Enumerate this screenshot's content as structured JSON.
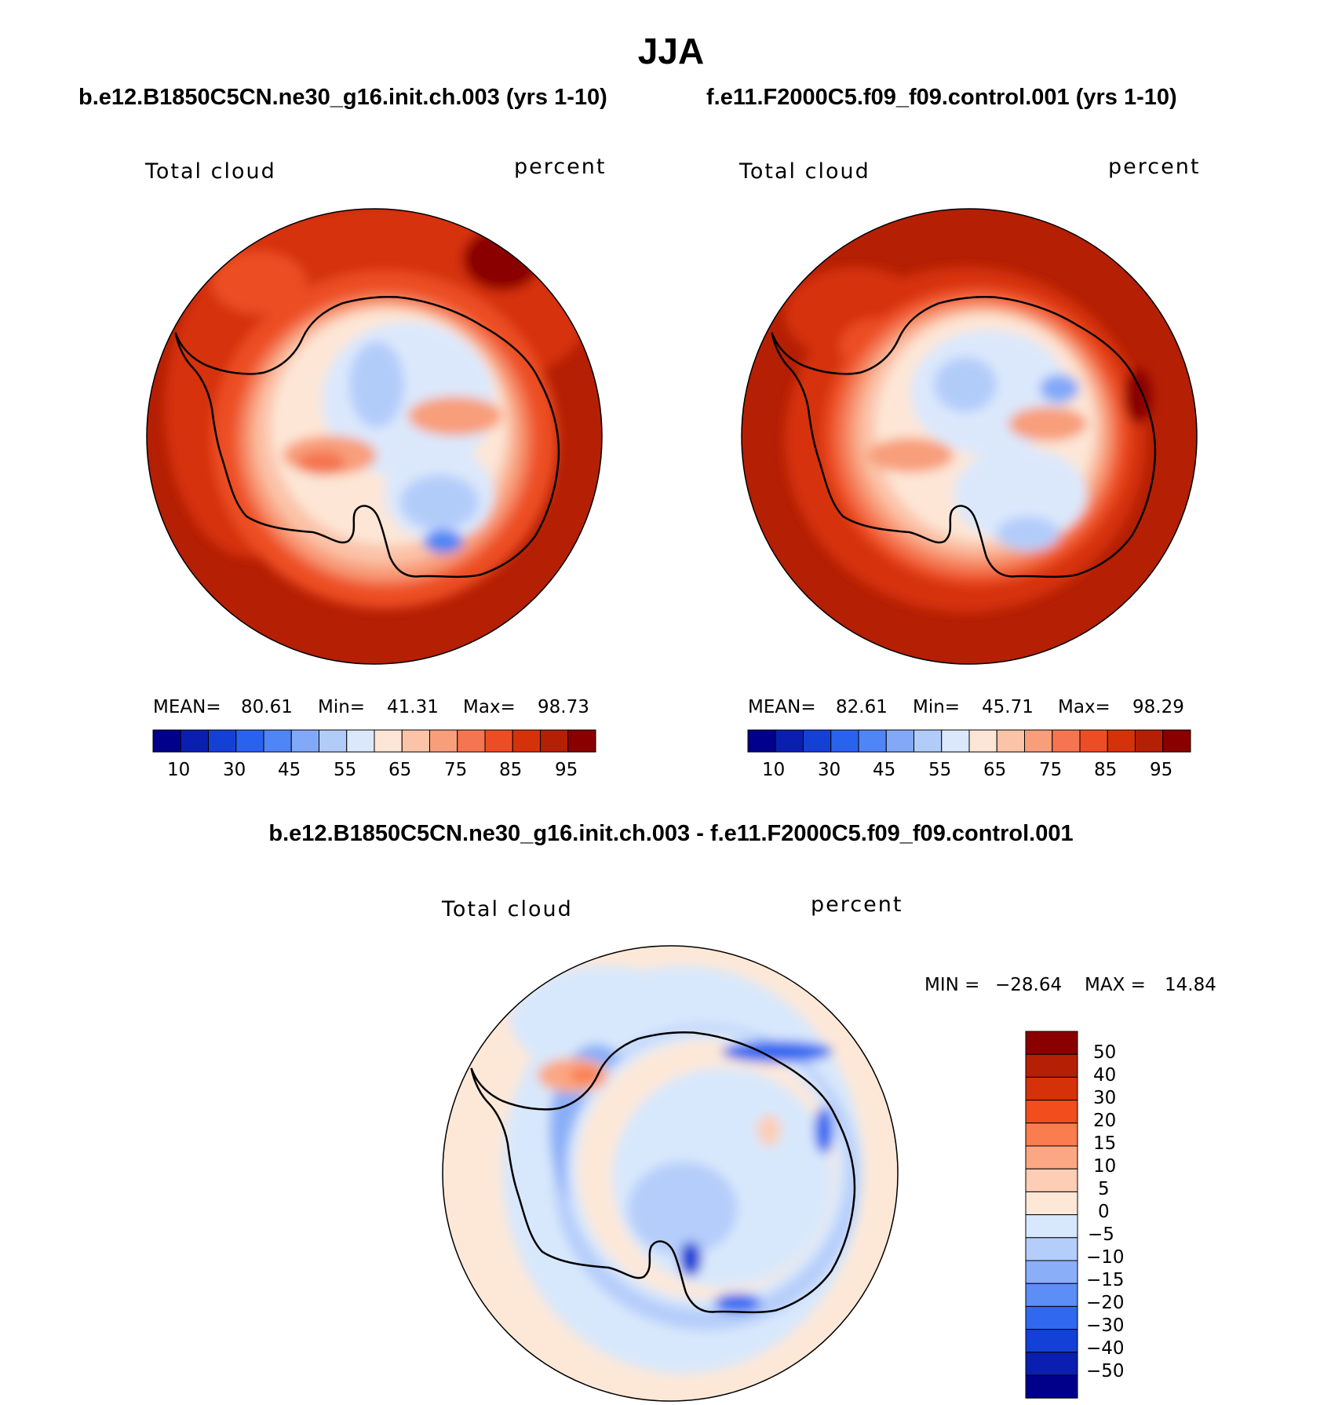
{
  "season": "JJA",
  "top_left": {
    "case_title": "b.e12.B1850C5CN.ne30_g16.init.ch.003 (yrs 1-10)",
    "variable": "Total cloud",
    "units": "percent",
    "stats": {
      "mean_label": "MEAN=",
      "mean": "80.61",
      "min_label": "Min=",
      "min": "41.31",
      "max_label": "Max=",
      "max": "98.73"
    }
  },
  "top_right": {
    "case_title": "f.e11.F2000C5.f09_f09.control.001 (yrs 1-10)",
    "variable": "Total cloud",
    "units": "percent",
    "stats": {
      "mean_label": "MEAN=",
      "mean": "82.61",
      "min_label": "Min=",
      "min": "45.71",
      "max_label": "Max=",
      "max": "98.29"
    }
  },
  "difference": {
    "title": "b.e12.B1850C5CN.ne30_g16.init.ch.003 - f.e11.F2000C5.f09_f09.control.001",
    "variable": "Total cloud",
    "units": "percent",
    "min_label": "MIN =",
    "min": "−28.64",
    "max_label": "MAX =",
    "max": "14.84"
  },
  "colorbar_field": {
    "labels": [
      "10",
      "30",
      "45",
      "55",
      "65",
      "75",
      "85",
      "95"
    ],
    "colors": [
      "#00008b",
      "#0a1fb0",
      "#1540d6",
      "#2a62f0",
      "#4f85f5",
      "#82a9f8",
      "#b2ccfa",
      "#dbe8fc",
      "#fde6d6",
      "#fbc3a8",
      "#f89e7a",
      "#f47550",
      "#ec4d24",
      "#d6320a",
      "#b51f04",
      "#8a0000"
    ]
  },
  "colorbar_diff": {
    "labels": [
      "50",
      "40",
      "30",
      "20",
      "15",
      "10",
      "5",
      "0",
      "−5",
      "−10",
      "−15",
      "−20",
      "−30",
      "−40",
      "−50"
    ],
    "colors": [
      "#8a0000",
      "#b51f04",
      "#d6320a",
      "#f24d1c",
      "#f97d4e",
      "#fba783",
      "#fdcdb5",
      "#fde8d8",
      "#d8e8fc",
      "#b5cdfa",
      "#8aaff8",
      "#5c8ef5",
      "#3068f0",
      "#1340d6",
      "#0a1fb0",
      "#00008b"
    ]
  }
}
